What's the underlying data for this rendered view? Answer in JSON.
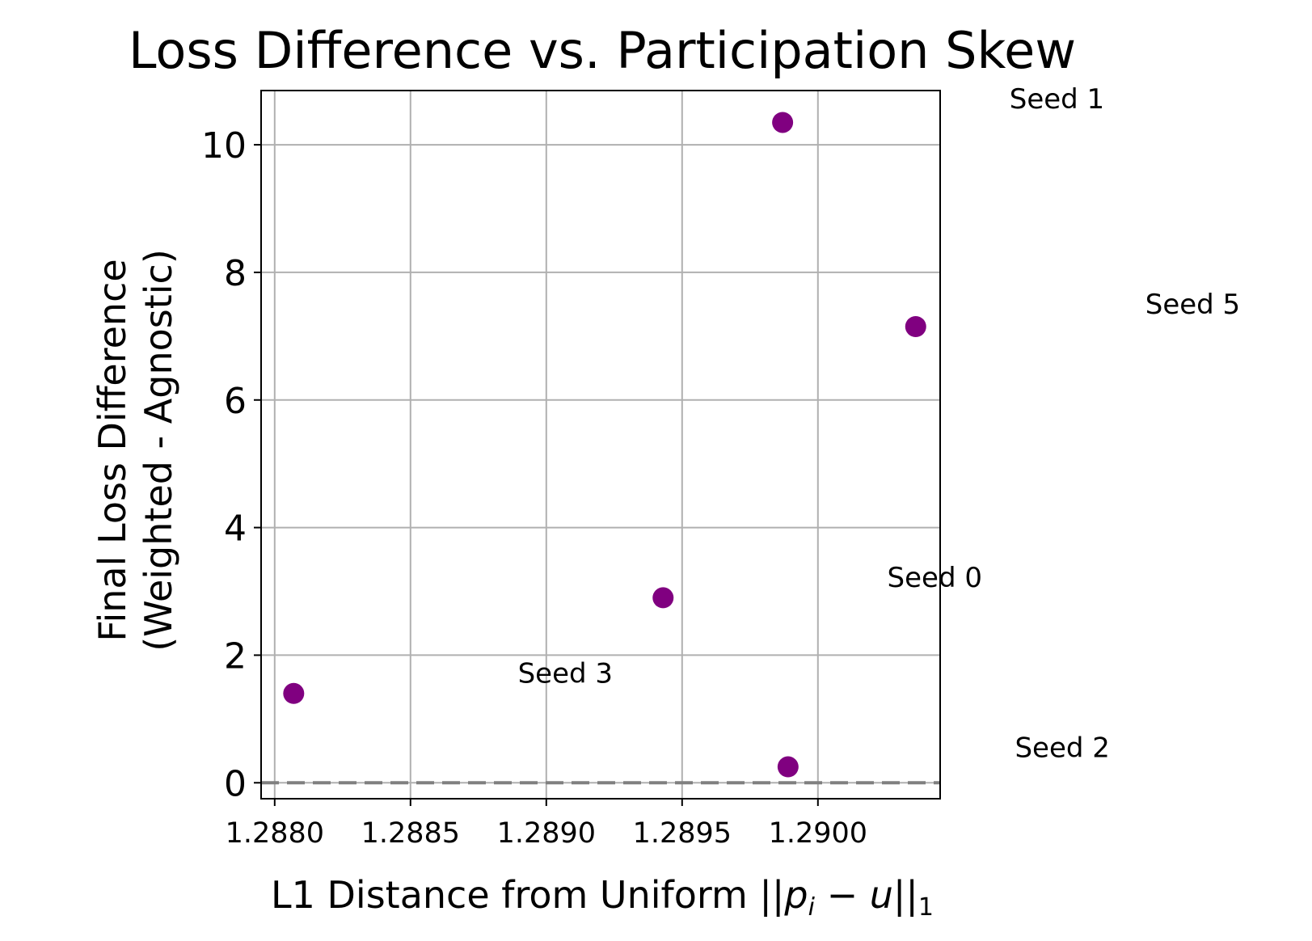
{
  "chart_data": {
    "type": "scatter",
    "title": "Loss Difference vs. Participation Skew",
    "xlabel": "L1 Distance from Uniform ||pᵢ − u||₁",
    "xlabel_parts": {
      "text": "L1 Distance from Uniform ",
      "bars_open": "||",
      "p": "p",
      "sub_i": "i",
      "minus": " − ",
      "u": "u",
      "bars_close": "||",
      "sub_1": "1"
    },
    "ylabel_lines": [
      "Final Loss Difference",
      "(Weighted - Agnostic)"
    ],
    "xlim": [
      1.28795,
      1.29045
    ],
    "ylim": [
      -0.25,
      10.85
    ],
    "x_ticks": [
      1.288,
      1.2885,
      1.289,
      1.2895,
      1.29
    ],
    "x_tick_labels": [
      "1.2880",
      "1.2885",
      "1.2890",
      "1.2895",
      "1.2900"
    ],
    "y_ticks": [
      0,
      2,
      4,
      6,
      8,
      10
    ],
    "y_tick_labels": [
      "0",
      "2",
      "4",
      "6",
      "8",
      "10"
    ],
    "grid": true,
    "marker_color": "#800080",
    "reference_line": {
      "y": 0,
      "color": "#808080",
      "style": "dashed"
    },
    "points": [
      {
        "x": 1.28807,
        "y": 1.4
      },
      {
        "x": 1.28943,
        "y": 2.9
      },
      {
        "x": 1.28987,
        "y": 10.35
      },
      {
        "x": 1.28989,
        "y": 0.25
      },
      {
        "x": 1.29036,
        "y": 7.15
      }
    ],
    "annotations": [
      {
        "text": "Seed 1",
        "x": 1.29088,
        "y": 10.57
      },
      {
        "text": "Seed 5",
        "x": 1.29138,
        "y": 7.35
      },
      {
        "text": "Seed 0",
        "x": 1.29043,
        "y": 3.07
      },
      {
        "text": "Seed 3",
        "x": 1.28907,
        "y": 1.57
      },
      {
        "text": "Seed 2",
        "x": 1.2909,
        "y": 0.4
      }
    ]
  }
}
